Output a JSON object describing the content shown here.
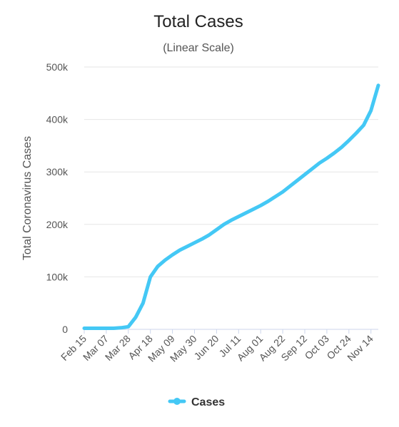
{
  "chart_data": {
    "type": "line",
    "title": "Total Cases",
    "subtitle": "(Linear Scale)",
    "y_label": "Total Coronavirus Cases",
    "categories": [
      "Feb 15",
      null,
      null,
      "Mar 07",
      null,
      null,
      "Mar 28",
      null,
      null,
      "Apr 18",
      null,
      null,
      "May 09",
      null,
      null,
      "May 30",
      null,
      null,
      "Jun 20",
      null,
      null,
      "Jul 11",
      null,
      null,
      "Aug 01",
      null,
      null,
      "Aug 22",
      null,
      null,
      "Sep 12",
      null,
      null,
      "Oct 03",
      null,
      null,
      "Oct 24",
      null,
      null,
      "Nov 14",
      null
    ],
    "series": [
      {
        "name": "Cases",
        "color": "#44c8f5",
        "values": [
          2000,
          2000,
          2000,
          2000,
          2000,
          3000,
          5000,
          23000,
          50000,
          100000,
          120000,
          132000,
          142000,
          151000,
          158000,
          165000,
          172000,
          180000,
          190000,
          200000,
          208000,
          215000,
          222000,
          229000,
          236000,
          244000,
          253000,
          262000,
          273000,
          284000,
          295000,
          306000,
          317000,
          326000,
          336000,
          347000,
          360000,
          374000,
          389000,
          417000,
          465000
        ]
      }
    ],
    "ylim": [
      0,
      500000
    ],
    "yticks": [
      {
        "value": 0,
        "label": "0"
      },
      {
        "value": 100000,
        "label": "100k"
      },
      {
        "value": 200000,
        "label": "200k"
      },
      {
        "value": 300000,
        "label": "300k"
      },
      {
        "value": 400000,
        "label": "400k"
      },
      {
        "value": 500000,
        "label": "500k"
      }
    ],
    "grid": true,
    "legend": "bottom"
  }
}
